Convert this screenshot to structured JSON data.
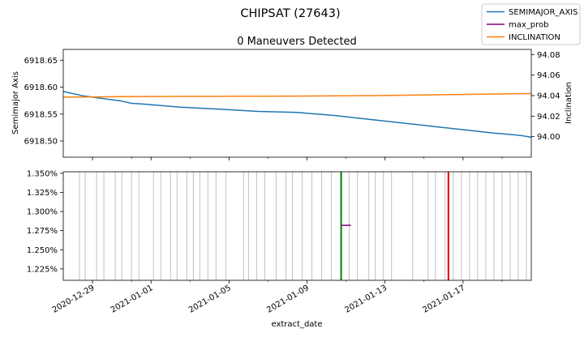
{
  "figure": {
    "suptitle": "CHIPSAT (27643)",
    "legend": {
      "placement": "top-right",
      "entries": [
        {
          "label": "SEMIMAJOR_AXIS",
          "color": "#1f77b4"
        },
        {
          "label": "max_prob",
          "color": "#800080"
        },
        {
          "label": "INCLINATION",
          "color": "#ff7f0e"
        }
      ]
    },
    "xlabel": "extract_date",
    "xticks": [
      "2020-12-29",
      "2021-01-01",
      "2021-01-05",
      "2021-01-09",
      "2021-01-13",
      "2021-01-17"
    ]
  },
  "chart_data": [
    {
      "type": "line",
      "title": "0 Maneuvers Detected",
      "ylabel": "Semimajor Axis",
      "ylim": [
        6918.47,
        6918.67
      ],
      "yticks": [
        "6918.50",
        "6918.55",
        "6918.60",
        "6918.65"
      ],
      "y2label": "Inclination",
      "y2lim": [
        93.98,
        94.085
      ],
      "y2ticks": [
        "94.00",
        "94.02",
        "94.04",
        "94.06",
        "94.08"
      ],
      "xlim": [
        "2020-12-27T12:00",
        "2021-01-20T12:00"
      ],
      "grid": false,
      "series": [
        {
          "name": "SEMIMAJOR_AXIS",
          "axis": "left",
          "color": "#1f77b4",
          "x": [
            "2020-12-27T12:00",
            "2020-12-28T12:00",
            "2020-12-29T12:00",
            "2020-12-30T12:00",
            "2020-12-31T00:00",
            "2020-12-31T12:00",
            "2021-01-01T12:00",
            "2021-01-02T12:00",
            "2021-01-03T12:00",
            "2021-01-04T12:00",
            "2021-01-05T12:00",
            "2021-01-06T12:00",
            "2021-01-07T12:00",
            "2021-01-08T12:00",
            "2021-01-09T12:00",
            "2021-01-10T12:00",
            "2021-01-11T12:00",
            "2021-01-12T12:00",
            "2021-01-13T12:00",
            "2021-01-14T12:00",
            "2021-01-15T12:00",
            "2021-01-16T12:00",
            "2021-01-17T12:00",
            "2021-01-18T12:00",
            "2021-01-19T12:00",
            "2021-01-20T00:00",
            "2021-01-20T12:00"
          ],
          "y": [
            6918.592,
            6918.584,
            6918.579,
            6918.574,
            6918.57,
            6918.569,
            6918.566,
            6918.563,
            6918.561,
            6918.559,
            6918.557,
            6918.555,
            6918.554,
            6918.553,
            6918.55,
            6918.547,
            6918.543,
            6918.539,
            6918.535,
            6918.531,
            6918.527,
            6918.523,
            6918.519,
            6918.515,
            6918.512,
            6918.51,
            6918.507
          ]
        },
        {
          "name": "INCLINATION",
          "axis": "right",
          "color": "#ff7f0e",
          "x": [
            "2020-12-27T12:00",
            "2020-12-30T12:00",
            "2021-01-03T12:00",
            "2021-01-08T12:00",
            "2021-01-12T12:00",
            "2021-01-16T12:00",
            "2021-01-19T12:00",
            "2021-01-20T12:00"
          ],
          "y": [
            94.0385,
            94.039,
            94.0393,
            94.0395,
            94.04,
            94.041,
            94.0418,
            94.042
          ]
        }
      ]
    },
    {
      "type": "line",
      "ylim": [
        1.21,
        1.352
      ],
      "yticks": [
        "1.350%",
        "1.325%",
        "1.300%",
        "1.275%",
        "1.250%",
        "1.225%"
      ],
      "xlim": [
        "2020-12-27T12:00",
        "2021-01-20T12:00"
      ],
      "grid": false,
      "observation_color": "#c0c0c0",
      "observation_dates": [
        "2020-12-28T08:00",
        "2020-12-28T15:00",
        "2020-12-29T05:00",
        "2020-12-29T14:00",
        "2020-12-30T04:00",
        "2020-12-30T12:00",
        "2020-12-31T00:00",
        "2020-12-31T09:00",
        "2021-01-01T03:00",
        "2021-01-01T12:00",
        "2021-01-02T00:00",
        "2021-01-02T08:00",
        "2021-01-02T20:00",
        "2021-01-03T04:00",
        "2021-01-03T12:00",
        "2021-01-03T22:00",
        "2021-01-04T08:00",
        "2021-01-04T20:00",
        "2021-01-05T18:00",
        "2021-01-06T00:00",
        "2021-01-06T10:00",
        "2021-01-06T20:00",
        "2021-01-07T10:00",
        "2021-01-07T22:00",
        "2021-01-08T06:00",
        "2021-01-08T18:00",
        "2021-01-09T06:00",
        "2021-01-09T18:00",
        "2021-01-10T06:00",
        "2021-01-11T04:00",
        "2021-01-11T14:00",
        "2021-01-12T04:00",
        "2021-01-12T12:00",
        "2021-01-12T22:00",
        "2021-01-13T08:00",
        "2021-01-14T10:00",
        "2021-01-15T05:00",
        "2021-01-15T14:00",
        "2021-01-16T02:00",
        "2021-01-16T12:00",
        "2021-01-16T22:00",
        "2021-01-17T08:00",
        "2021-01-17T18:00",
        "2021-01-18T04:00",
        "2021-01-18T14:00",
        "2021-01-19T00:00",
        "2021-01-19T10:00",
        "2021-01-19T20:00",
        "2021-01-20T06:00"
      ],
      "markers": [
        {
          "date": "2021-01-10T18:00",
          "color": "#008000"
        },
        {
          "date": "2021-01-16T06:00",
          "color": "#e00000"
        }
      ],
      "series": [
        {
          "name": "max_prob",
          "color": "#800080",
          "x": [
            "2021-01-10T18:00",
            "2021-01-11T06:00"
          ],
          "y": [
            1.282,
            1.282
          ]
        }
      ]
    }
  ]
}
